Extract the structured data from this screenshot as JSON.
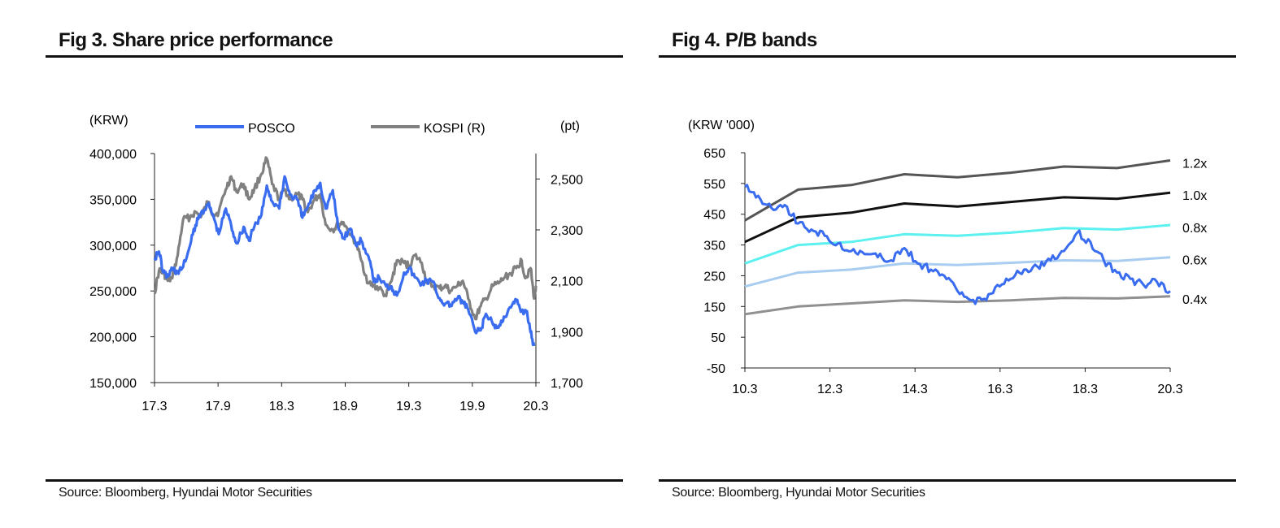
{
  "fig3": {
    "title": "Fig 3. Share price performance",
    "source": "Source: Bloomberg, Hyundai Motor Securities"
  },
  "fig4": {
    "title": "Fig 4. P/B bands",
    "source": "Source: Bloomberg, Hyundai Motor Securities"
  },
  "chart_data": [
    {
      "type": "line",
      "yunit_left": "(KRW)",
      "yunit_right": "(pt)",
      "x_ticks": [
        "17.3",
        "17.9",
        "18.3",
        "18.9",
        "19.3",
        "19.9",
        "20.3"
      ],
      "yticks_left": [
        "400,000",
        "350,000",
        "300,000",
        "250,000",
        "200,000",
        "150,000"
      ],
      "yticks_right": [
        "2,500",
        "2,300",
        "2,100",
        "1,900",
        "1,700"
      ],
      "ylim_left": [
        150000,
        400000
      ],
      "ylim_right": [
        1700,
        2600
      ],
      "legend_position": "top",
      "grid": false,
      "series": [
        {
          "name": "POSCO",
          "axis": "left",
          "color": "#3a6cf0",
          "points": [
            [
              0,
              286000
            ],
            [
              0.25,
              293000
            ],
            [
              0.5,
              270000
            ],
            [
              0.75,
              266000
            ],
            [
              1,
              275000
            ],
            [
              1.3,
              270000
            ],
            [
              1.6,
              276000
            ],
            [
              2,
              300000
            ],
            [
              2.3,
              322000
            ],
            [
              2.6,
              335000
            ],
            [
              3,
              345000
            ],
            [
              3.3,
              332000
            ],
            [
              3.6,
              312000
            ],
            [
              4,
              340000
            ],
            [
              4.3,
              322000
            ],
            [
              4.6,
              302000
            ],
            [
              5,
              320000
            ],
            [
              5.3,
              305000
            ],
            [
              5.6,
              320000
            ],
            [
              6,
              333000
            ],
            [
              6.3,
              365000
            ],
            [
              6.6,
              348000
            ],
            [
              7,
              340000
            ],
            [
              7.3,
              375000
            ],
            [
              7.6,
              355000
            ],
            [
              8,
              350000
            ],
            [
              8.3,
              330000
            ],
            [
              8.6,
              342000
            ],
            [
              9,
              360000
            ],
            [
              9.3,
              368000
            ],
            [
              9.6,
              340000
            ],
            [
              10,
              360000
            ],
            [
              10.3,
              320000
            ],
            [
              10.6,
              308000
            ],
            [
              11,
              318000
            ],
            [
              11.3,
              300000
            ],
            [
              11.6,
              305000
            ],
            [
              12,
              288000
            ],
            [
              12.3,
              260000
            ],
            [
              12.6,
              265000
            ],
            [
              13,
              255000
            ],
            [
              13.3,
              255000
            ],
            [
              13.6,
              245000
            ],
            [
              14,
              270000
            ],
            [
              14.3,
              275000
            ],
            [
              14.6,
              265000
            ],
            [
              15,
              258000
            ],
            [
              15.3,
              262000
            ],
            [
              15.6,
              260000
            ],
            [
              16,
              242000
            ],
            [
              16.3,
              236000
            ],
            [
              16.6,
              235000
            ],
            [
              17,
              242000
            ],
            [
              17.3,
              238000
            ],
            [
              17.6,
              230000
            ],
            [
              18,
              205000
            ],
            [
              18.3,
              207000
            ],
            [
              18.6,
              225000
            ],
            [
              19,
              213000
            ],
            [
              19.3,
              210000
            ],
            [
              19.6,
              222000
            ],
            [
              20,
              232000
            ],
            [
              20.3,
              240000
            ],
            [
              20.6,
              228000
            ],
            [
              20.9,
              228000
            ],
            [
              21.1,
              205000
            ],
            [
              21.3,
              190000
            ]
          ]
        },
        {
          "name": "KOSPI (R)",
          "axis": "right",
          "color": "#808080",
          "points": [
            [
              0,
              2050
            ],
            [
              0.25,
              2140
            ],
            [
              0.5,
              2130
            ],
            [
              0.75,
              2100
            ],
            [
              1,
              2110
            ],
            [
              1.3,
              2200
            ],
            [
              1.6,
              2340
            ],
            [
              2,
              2350
            ],
            [
              2.3,
              2370
            ],
            [
              2.6,
              2350
            ],
            [
              3,
              2410
            ],
            [
              3.3,
              2360
            ],
            [
              3.6,
              2370
            ],
            [
              4,
              2460
            ],
            [
              4.3,
              2510
            ],
            [
              4.6,
              2450
            ],
            [
              5,
              2480
            ],
            [
              5.3,
              2420
            ],
            [
              5.6,
              2460
            ],
            [
              6,
              2520
            ],
            [
              6.3,
              2580
            ],
            [
              6.6,
              2480
            ],
            [
              7,
              2420
            ],
            [
              7.3,
              2460
            ],
            [
              7.6,
              2420
            ],
            [
              8,
              2440
            ],
            [
              8.3,
              2420
            ],
            [
              8.6,
              2370
            ],
            [
              9,
              2420
            ],
            [
              9.3,
              2440
            ],
            [
              9.6,
              2320
            ],
            [
              10,
              2300
            ],
            [
              10.3,
              2320
            ],
            [
              10.6,
              2330
            ],
            [
              11,
              2280
            ],
            [
              11.3,
              2250
            ],
            [
              11.6,
              2180
            ],
            [
              12,
              2090
            ],
            [
              12.3,
              2080
            ],
            [
              12.6,
              2070
            ],
            [
              13,
              2040
            ],
            [
              13.3,
              2100
            ],
            [
              13.6,
              2180
            ],
            [
              14,
              2170
            ],
            [
              14.3,
              2160
            ],
            [
              14.6,
              2200
            ],
            [
              15,
              2170
            ],
            [
              15.3,
              2090
            ],
            [
              15.6,
              2080
            ],
            [
              16,
              2070
            ],
            [
              16.3,
              2080
            ],
            [
              16.6,
              2060
            ],
            [
              17,
              2080
            ],
            [
              17.3,
              2100
            ],
            [
              17.6,
              2030
            ],
            [
              18,
              1950
            ],
            [
              18.3,
              2000
            ],
            [
              18.6,
              2030
            ],
            [
              19,
              2080
            ],
            [
              19.3,
              2090
            ],
            [
              19.6,
              2110
            ],
            [
              20,
              2130
            ],
            [
              20.3,
              2150
            ],
            [
              20.6,
              2180
            ],
            [
              20.8,
              2110
            ],
            [
              21.1,
              2150
            ],
            [
              21.3,
              2030
            ],
            [
              21.4,
              2080
            ]
          ]
        }
      ]
    },
    {
      "type": "line",
      "yunit": "(KRW '000)",
      "x_ticks": [
        "10.3",
        "12.3",
        "14.3",
        "16.3",
        "18.3",
        "20.3"
      ],
      "yticks": [
        "650",
        "550",
        "450",
        "350",
        "250",
        "150",
        "50",
        "-50"
      ],
      "ylim": [
        -50,
        650
      ],
      "grid": false,
      "series": [
        {
          "name": "POSCO",
          "color": "#3a6cf0",
          "values": [
            540,
            510,
            470,
            480,
            420,
            400,
            380,
            355,
            330,
            320,
            310,
            300,
            340,
            290,
            270,
            250,
            200,
            170,
            175,
            220,
            240,
            270,
            280,
            300,
            330,
            390,
            360,
            300,
            260,
            240,
            220,
            230,
            200
          ]
        },
        {
          "name": "1.2x",
          "color": "#555555",
          "values": [
            430,
            530,
            545,
            580,
            570,
            585,
            605,
            600,
            625
          ]
        },
        {
          "name": "1.0x",
          "color": "#111111",
          "values": [
            360,
            440,
            455,
            485,
            475,
            490,
            505,
            500,
            520
          ]
        },
        {
          "name": "0.8x",
          "color": "#5cf0f0",
          "values": [
            290,
            350,
            360,
            385,
            380,
            390,
            405,
            400,
            415
          ]
        },
        {
          "name": "0.6x",
          "color": "#a8cdf0",
          "values": [
            215,
            260,
            270,
            290,
            285,
            292,
            300,
            298,
            310
          ]
        },
        {
          "name": "0.4x",
          "color": "#909090",
          "values": [
            125,
            150,
            160,
            170,
            165,
            170,
            178,
            176,
            183
          ]
        }
      ]
    }
  ]
}
